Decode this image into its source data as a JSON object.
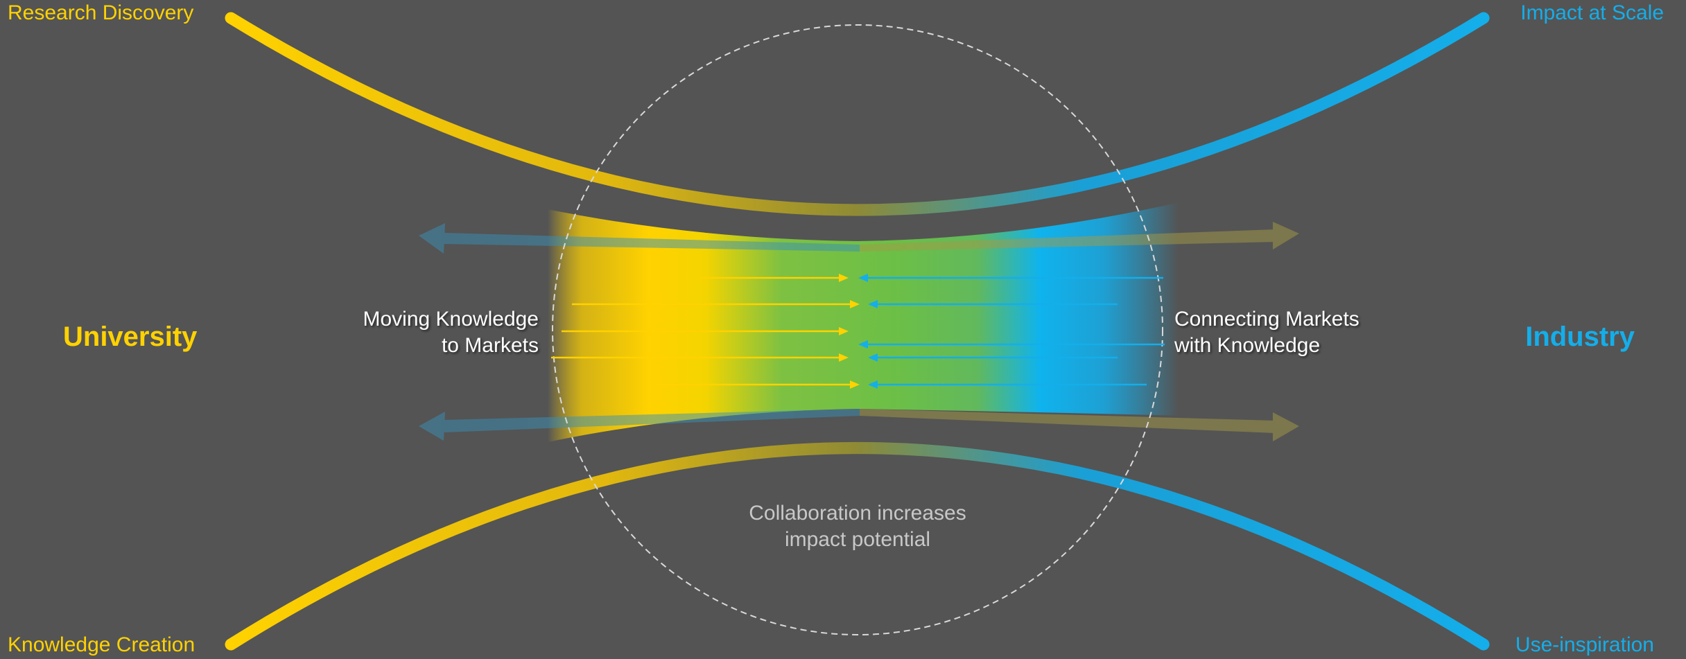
{
  "colors": {
    "background": "#545454",
    "university": "#ffd200",
    "industry": "#14aeea",
    "collaboration": "#6cbf46",
    "circle_outline": "#d9d9d9"
  },
  "labels": {
    "top_left": "Research Discovery",
    "bottom_left": "Knowledge Creation",
    "top_right": "Impact at Scale",
    "bottom_right": "Use-inspiration",
    "left_main": "University",
    "right_main": "Industry",
    "left_flow_line1": "Moving Knowledge",
    "left_flow_line2": "to Markets",
    "right_flow_line1": "Connecting Markets",
    "right_flow_line2": "with Knowledge",
    "center_line1": "Collaboration increases",
    "center_line2": "impact potential"
  }
}
